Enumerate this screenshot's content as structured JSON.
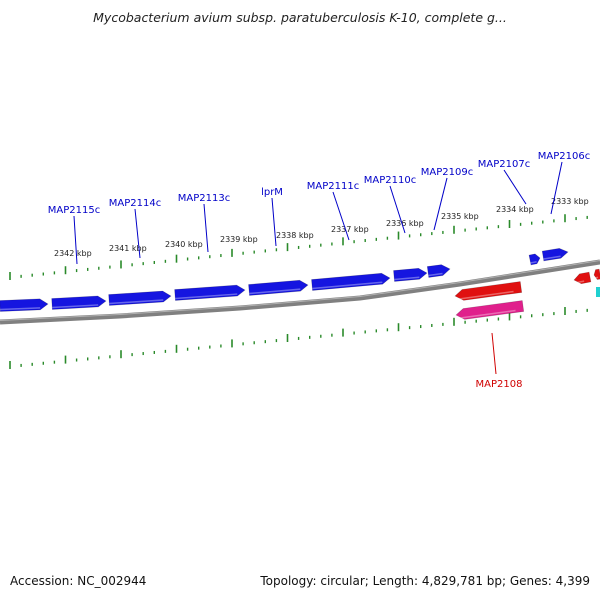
{
  "title": "Mycobacterium avium subsp. paratuberculosis K-10, complete g...",
  "footer": {
    "accession": "Accession: NC_002944",
    "summary": "Topology: circular; Length: 4,829,781 bp; Genes: 4,399"
  },
  "colors": {
    "forward_cds": "#1515e0",
    "reverse_cds": "#e01010",
    "reverse_gene": "#e0208c",
    "backbone": "#808080",
    "ticks": "#2a8a2a",
    "label_forward": "#0000c8",
    "label_reverse": "#d00000"
  },
  "kbp_labels": [
    "2342 kbp",
    "2341 kbp",
    "2340 kbp",
    "2339 kbp",
    "2338 kbp",
    "2337 kbp",
    "2336 kbp",
    "2335 kbp",
    "2334 kbp",
    "2333 kbp"
  ],
  "gene_labels_forward_strand": [
    "MAP2115c",
    "MAP2114c",
    "MAP2113c",
    "lprM",
    "MAP2111c",
    "MAP2110c",
    "MAP2109c",
    "MAP2107c",
    "MAP2106c"
  ],
  "gene_labels_reverse_strand": [
    "MAP2108"
  ]
}
